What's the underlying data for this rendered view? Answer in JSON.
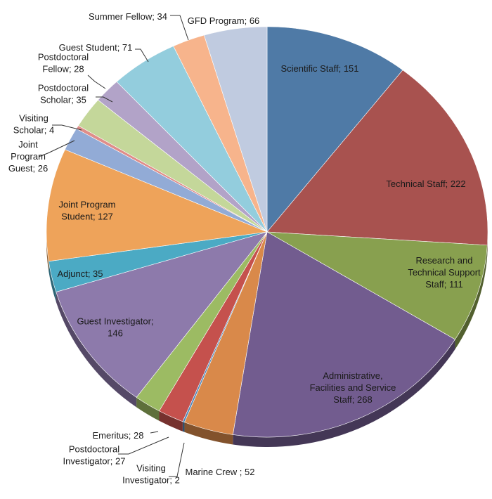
{
  "chart_data": {
    "type": "pie",
    "title": "",
    "label_format": "{name}; {value}",
    "slices": [
      {
        "name": "Scientific Staff",
        "value": 151,
        "color": "#4f7aa6"
      },
      {
        "name": "Technical Staff",
        "value": 222,
        "color": "#a8524f"
      },
      {
        "name": "Research and Technical Support Staff",
        "value": 111,
        "color": "#88a04f"
      },
      {
        "name": "Administrative, Facilities and Service Staff",
        "value": 268,
        "color": "#725c8f"
      },
      {
        "name": "Marine Crew",
        "value": 52,
        "color": "#d9894a"
      },
      {
        "name": "Visiting Investigator",
        "value": 2,
        "color": "#4f86b8"
      },
      {
        "name": "Postdoctoral Investigator",
        "value": 27,
        "color": "#c5514d"
      },
      {
        "name": "Emeritus",
        "value": 28,
        "color": "#9cbb63"
      },
      {
        "name": "Guest Investigator",
        "value": 146,
        "color": "#8d7aab"
      },
      {
        "name": "Adjunct",
        "value": 35,
        "color": "#4baac4"
      },
      {
        "name": "Joint Program Student",
        "value": 127,
        "color": "#eea35a"
      },
      {
        "name": "Joint Program Guest",
        "value": 26,
        "color": "#92abd6"
      },
      {
        "name": "Visiting Scholar",
        "value": 4,
        "color": "#df8d89"
      },
      {
        "name": "Postdoctoral Scholar",
        "value": 35,
        "color": "#c4d79a"
      },
      {
        "name": "Postdoctoral Fellow",
        "value": 28,
        "color": "#b2a3c8"
      },
      {
        "name": "Guest Student",
        "value": 71,
        "color": "#93cddd"
      },
      {
        "name": "Summer Fellow",
        "value": 34,
        "color": "#f7b48c"
      },
      {
        "name": "GFD Program",
        "value": 66,
        "color": "#c0cbe0"
      }
    ],
    "labels": [
      {
        "lines": [
          "Scientific Staff; 151"
        ]
      },
      {
        "lines": [
          "Technical Staff; 222"
        ]
      },
      {
        "lines": [
          "Research and",
          "Technical Support",
          "Staff; 111"
        ]
      },
      {
        "lines": [
          "Administrative,",
          "Facilities and Service",
          "Staff; 268"
        ]
      },
      {
        "lines": [
          "Marine Crew ; 52"
        ]
      },
      {
        "lines": [
          "Visiting",
          "Investigator; 2"
        ]
      },
      {
        "lines": [
          "Postdoctoral",
          "Investigator; 27"
        ]
      },
      {
        "lines": [
          "Emeritus; 28"
        ]
      },
      {
        "lines": [
          "Guest Investigator;",
          "146"
        ]
      },
      {
        "lines": [
          "Adjunct; 35"
        ]
      },
      {
        "lines": [
          "Joint Program",
          "Student; 127"
        ]
      },
      {
        "lines": [
          "Joint",
          "Program",
          "Guest; 26"
        ]
      },
      {
        "lines": [
          "Visiting",
          "Scholar; 4"
        ]
      },
      {
        "lines": [
          "Postdoctoral",
          "Scholar; 35"
        ]
      },
      {
        "lines": [
          "Postdoctoral",
          "Fellow; 28"
        ]
      },
      {
        "lines": [
          "Guest Student; 71"
        ]
      },
      {
        "lines": [
          "Summer Fellow; 34"
        ]
      },
      {
        "lines": [
          "GFD Program; 66"
        ]
      }
    ]
  }
}
